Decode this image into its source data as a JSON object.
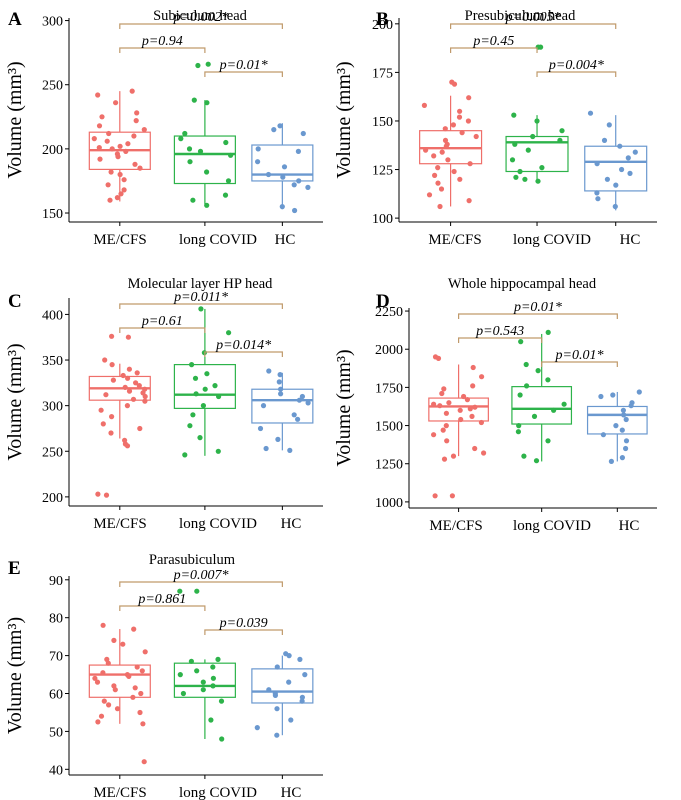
{
  "chart_data": [
    {
      "type": "boxplot",
      "panel_label": "A",
      "title": "Subiculum head",
      "ylabel": "Volume (mm³)",
      "categories": [
        "ME/CFS",
        "long COVID",
        "HC"
      ],
      "ylim": [
        143,
        302
      ],
      "yticks": [
        150,
        200,
        250,
        300
      ],
      "boxes": [
        {
          "q1": 184,
          "median": 199,
          "q3": 213,
          "wlo": 159,
          "whi": 245
        },
        {
          "q1": 173,
          "median": 196,
          "q3": 210,
          "wlo": 157,
          "whi": 238
        },
        {
          "q1": 175,
          "median": 180,
          "q3": 203,
          "wlo": 153,
          "whi": 220
        }
      ],
      "points": [
        [
          245,
          242,
          236,
          228,
          225,
          222,
          218,
          215,
          212,
          210,
          208,
          206,
          204,
          202,
          201,
          200,
          198,
          196,
          194,
          192,
          188,
          185,
          182,
          180,
          176,
          172,
          168,
          165,
          162,
          160
        ],
        [
          266,
          265,
          238,
          236,
          212,
          208,
          205,
          200,
          198,
          195,
          190,
          182,
          175,
          164,
          160,
          156
        ],
        [
          218,
          215,
          212,
          200,
          198,
          190,
          186,
          180,
          178,
          175,
          172,
          170,
          155,
          152
        ]
      ],
      "comparisons": [
        {
          "from": 0,
          "to": 1,
          "label": "p=0.94",
          "level": 1
        },
        {
          "from": 0,
          "to": 2,
          "label": "p=0.002*",
          "level": 2
        },
        {
          "from": 1,
          "to": 2,
          "label": "p=0.01*",
          "level": 0
        }
      ]
    },
    {
      "type": "boxplot",
      "panel_label": "B",
      "title": "Presubiculum head",
      "ylabel": "Volume (mm³)",
      "categories": [
        "ME/CFS",
        "long COVID",
        "HC"
      ],
      "ylim": [
        98,
        203
      ],
      "yticks": [
        100,
        125,
        150,
        175,
        200
      ],
      "boxes": [
        {
          "q1": 128,
          "median": 136,
          "q3": 145,
          "wlo": 106,
          "whi": 163
        },
        {
          "q1": 124,
          "median": 139,
          "q3": 142,
          "wlo": 119,
          "whi": 153
        },
        {
          "q1": 114,
          "median": 129,
          "q3": 137,
          "wlo": 104,
          "whi": 153
        }
      ],
      "points": [
        [
          170,
          169,
          162,
          158,
          155,
          152,
          150,
          148,
          146,
          144,
          142,
          140,
          138,
          137,
          135,
          134,
          132,
          130,
          128,
          126,
          124,
          122,
          120,
          118,
          115,
          112,
          109,
          106
        ],
        [
          188,
          188,
          153,
          150,
          145,
          142,
          140,
          138,
          135,
          130,
          126,
          124,
          121,
          120,
          119
        ],
        [
          154,
          148,
          140,
          137,
          134,
          131,
          128,
          125,
          123,
          120,
          117,
          113,
          110,
          106
        ]
      ],
      "comparisons": [
        {
          "from": 0,
          "to": 1,
          "label": "p=0.45",
          "level": 1
        },
        {
          "from": 0,
          "to": 2,
          "label": "p=0.005*",
          "level": 2
        },
        {
          "from": 1,
          "to": 2,
          "label": "p=0.004*",
          "level": 0
        }
      ]
    },
    {
      "type": "boxplot",
      "panel_label": "C",
      "title": "Molecular layer HP head",
      "ylabel": "Volume (mm³)",
      "categories": [
        "ME/CFS",
        "long COVID",
        "HC"
      ],
      "ylim": [
        190,
        418
      ],
      "yticks": [
        200,
        250,
        300,
        350,
        400
      ],
      "boxes": [
        {
          "q1": 306,
          "median": 319,
          "q3": 332,
          "wlo": 264,
          "whi": 346
        },
        {
          "q1": 297,
          "median": 312,
          "q3": 345,
          "wlo": 245,
          "whi": 406
        },
        {
          "q1": 281,
          "median": 306,
          "q3": 318,
          "wlo": 251,
          "whi": 336
        }
      ],
      "points": [
        [
          376,
          375,
          350,
          345,
          340,
          336,
          333,
          330,
          328,
          325,
          322,
          320,
          318,
          316,
          314,
          312,
          310,
          307,
          305,
          300,
          295,
          288,
          280,
          275,
          270,
          262,
          258,
          256,
          203,
          202
        ],
        [
          406,
          380,
          358,
          345,
          335,
          330,
          322,
          318,
          313,
          310,
          300,
          290,
          278,
          265,
          250,
          246
        ],
        [
          338,
          334,
          326,
          318,
          313,
          310,
          306,
          303,
          300,
          290,
          285,
          275,
          263,
          253,
          251
        ]
      ],
      "comparisons": [
        {
          "from": 0,
          "to": 1,
          "label": "p=0.61",
          "level": 1
        },
        {
          "from": 0,
          "to": 2,
          "label": "p=0.011*",
          "level": 2
        },
        {
          "from": 1,
          "to": 2,
          "label": "p=0.014*",
          "level": 0
        }
      ]
    },
    {
      "type": "boxplot",
      "panel_label": "D",
      "title": "Whole hippocampal head",
      "ylabel": "Volume (mm³)",
      "categories": [
        "ME/CFS",
        "long COVID",
        "HC"
      ],
      "ylim": [
        960,
        2270
      ],
      "yticks": [
        1000,
        1250,
        1500,
        1750,
        2000,
        2250
      ],
      "boxes": [
        {
          "q1": 1530,
          "median": 1625,
          "q3": 1680,
          "wlo": 1300,
          "whi": 1900
        },
        {
          "q1": 1510,
          "median": 1610,
          "q3": 1755,
          "wlo": 1265,
          "whi": 2100
        },
        {
          "q1": 1445,
          "median": 1570,
          "q3": 1625,
          "wlo": 1265,
          "whi": 1720
        }
      ],
      "points": [
        [
          1950,
          1940,
          1880,
          1820,
          1760,
          1740,
          1710,
          1690,
          1670,
          1650,
          1640,
          1630,
          1620,
          1610,
          1600,
          1580,
          1560,
          1540,
          1520,
          1500,
          1470,
          1440,
          1400,
          1350,
          1320,
          1300,
          1280,
          1040,
          1040
        ],
        [
          2110,
          2050,
          1900,
          1860,
          1800,
          1760,
          1700,
          1640,
          1600,
          1560,
          1500,
          1460,
          1400,
          1300,
          1270
        ],
        [
          1720,
          1700,
          1690,
          1650,
          1630,
          1600,
          1570,
          1540,
          1500,
          1470,
          1440,
          1400,
          1350,
          1290,
          1265
        ]
      ],
      "comparisons": [
        {
          "from": 0,
          "to": 1,
          "label": "p=0.543",
          "level": 1
        },
        {
          "from": 0,
          "to": 2,
          "label": "p=0.01*",
          "level": 2
        },
        {
          "from": 1,
          "to": 2,
          "label": "p=0.01*",
          "level": 0
        }
      ]
    },
    {
      "type": "boxplot",
      "panel_label": "E",
      "title": "Parasubiculum",
      "ylabel": "Volume (mm³)",
      "categories": [
        "ME/CFS",
        "long COVID",
        "HC"
      ],
      "ylim": [
        38.5,
        91
      ],
      "yticks": [
        40,
        50,
        60,
        70,
        80,
        90
      ],
      "boxes": [
        {
          "q1": 59,
          "median": 65,
          "q3": 67.5,
          "wlo": 52,
          "whi": 77
        },
        {
          "q1": 59,
          "median": 62,
          "q3": 68,
          "wlo": 48,
          "whi": 69
        },
        {
          "q1": 57.5,
          "median": 60.5,
          "q3": 66.5,
          "wlo": 49,
          "whi": 70
        }
      ],
      "points": [
        [
          78,
          77,
          74,
          73,
          71,
          69,
          68,
          67,
          66,
          65.5,
          65,
          64.5,
          64,
          63,
          62,
          61.5,
          61,
          60,
          59,
          58,
          57,
          56,
          55,
          54,
          52.5,
          52,
          42
        ],
        [
          87,
          87,
          69,
          68.5,
          67,
          66,
          65,
          64,
          63,
          62,
          61,
          60,
          58,
          53,
          48
        ],
        [
          70.5,
          70,
          69,
          67,
          65,
          63,
          61,
          60,
          59.5,
          59,
          58,
          56,
          53,
          51,
          49
        ]
      ],
      "comparisons": [
        {
          "from": 0,
          "to": 1,
          "label": "p=0.861",
          "level": 1
        },
        {
          "from": 0,
          "to": 2,
          "label": "p=0.007*",
          "level": 2
        },
        {
          "from": 1,
          "to": 2,
          "label": "p=0.039",
          "level": 0
        }
      ]
    }
  ],
  "colors": {
    "ME/CFS": "#ef6f6a",
    "long COVID": "#2db34a",
    "HC": "#6a98cf",
    "bracket": "#c09a6b",
    "axis": "#000000"
  }
}
